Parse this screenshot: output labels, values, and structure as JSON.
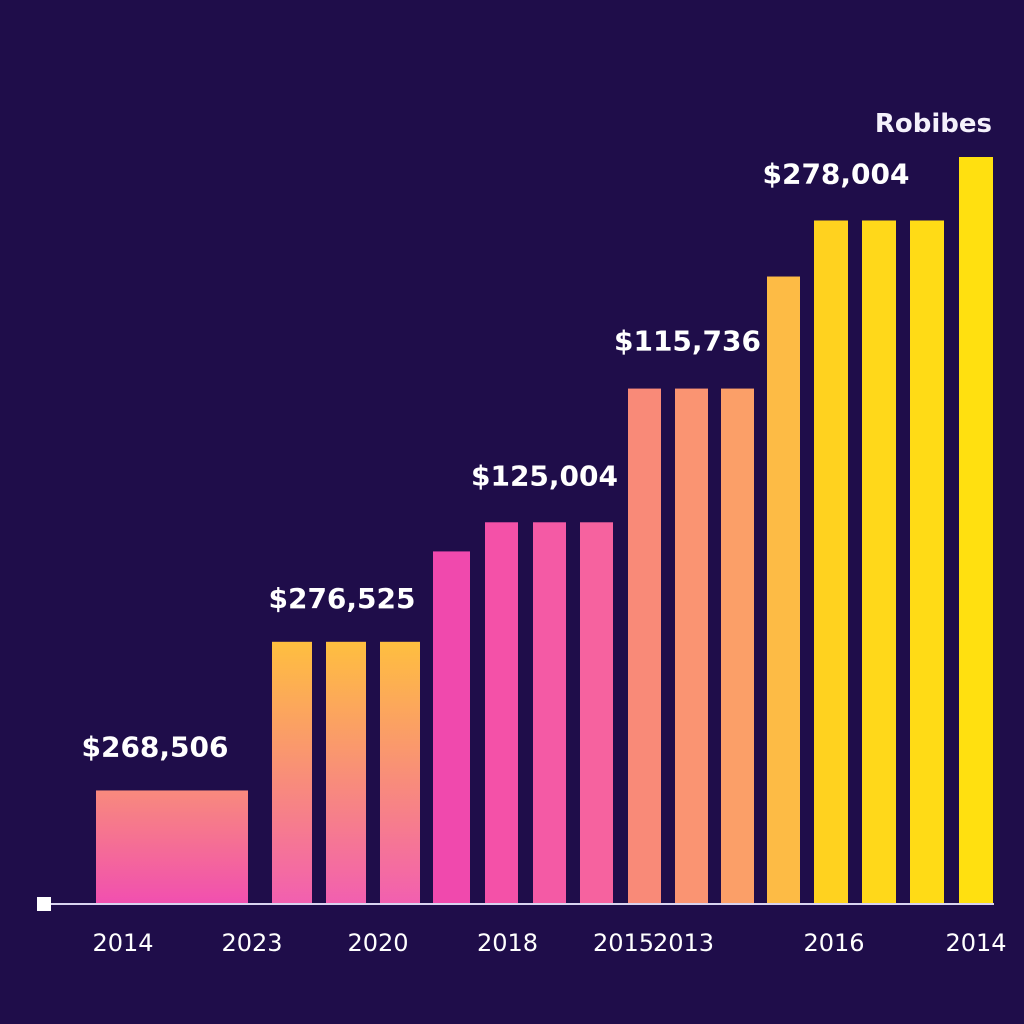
{
  "colors": {
    "background": "#1f0d4a",
    "text": "#ffffff",
    "axis": "#d9d3f0"
  },
  "chart_data": {
    "type": "bar",
    "title": "Robibes",
    "xlabel": "",
    "ylabel": "",
    "ylim": [
      0,
      100
    ],
    "grid": false,
    "legend": "none",
    "bars": [
      {
        "value": 15.2,
        "color_top": "#f88a7d",
        "color_bottom": "#f14fb0"
      },
      {
        "value": 35.1,
        "color_top": "#ffbf3f",
        "color_bottom": "#f25fb0"
      },
      {
        "value": 35.1,
        "color_top": "#ffbf3f",
        "color_bottom": "#f25fb0"
      },
      {
        "value": 35.1,
        "color_top": "#ffbf3f",
        "color_bottom": "#f25fb0"
      },
      {
        "value": 47.2,
        "color_top": "#f049ad",
        "color_bottom": "#f049ad"
      },
      {
        "value": 51.1,
        "color_top": "#f451a8",
        "color_bottom": "#f451a8"
      },
      {
        "value": 51.1,
        "color_top": "#f45aa5",
        "color_bottom": "#f45aa5"
      },
      {
        "value": 51.1,
        "color_top": "#f6629f",
        "color_bottom": "#f6629f"
      },
      {
        "value": 69.0,
        "color_top": "#f98a78",
        "color_bottom": "#f98a78"
      },
      {
        "value": 69.0,
        "color_top": "#fa9472",
        "color_bottom": "#fa9472"
      },
      {
        "value": 69.0,
        "color_top": "#fb9f68",
        "color_bottom": "#fb9f68"
      },
      {
        "value": 84.0,
        "color_top": "#fdbb45",
        "color_bottom": "#fdbb45"
      },
      {
        "value": 91.5,
        "color_top": "#ffd21f",
        "color_bottom": "#ffd21f"
      },
      {
        "value": 91.5,
        "color_top": "#ffd81a",
        "color_bottom": "#ffd81a"
      },
      {
        "value": 91.5,
        "color_top": "#ffdb16",
        "color_bottom": "#ffdb16"
      },
      {
        "value": 100.0,
        "color_top": "#ffe010",
        "color_bottom": "#ffe010"
      }
    ],
    "data_labels": [
      {
        "text": "$268,506",
        "bar": 0
      },
      {
        "text": "$276,525",
        "bar": 2
      },
      {
        "text": "$125,004",
        "bar": 6
      },
      {
        "text": "$115,736",
        "bar": 9
      },
      {
        "text": "$278,004",
        "bar": 13
      }
    ],
    "x_tick_labels": [
      {
        "text": "2014",
        "bar": 0
      },
      {
        "text": "2023",
        "bar": 1
      },
      {
        "text": "2020",
        "bar": 3
      },
      {
        "text": "2018",
        "bar": 5
      },
      {
        "text": "2015",
        "bar": 7
      },
      {
        "text": "2013",
        "bar": 9
      },
      {
        "text": "2016",
        "bar": 12
      },
      {
        "text": "2014",
        "bar": 15
      }
    ]
  }
}
